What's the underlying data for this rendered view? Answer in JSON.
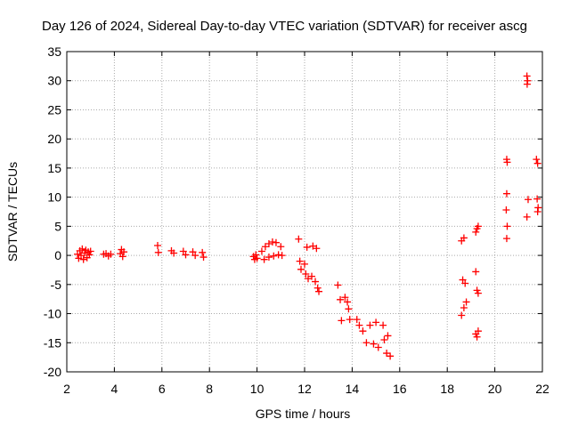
{
  "chart_data": {
    "type": "scatter",
    "title": "Day 126 of 2024, Sidereal Day-to-day VTEC variation (SDTVAR) for receiver ascg",
    "xlabel": "GPS time / hours",
    "ylabel": "SDTVAR / TECUs",
    "xlim": [
      2,
      22
    ],
    "ylim": [
      -20,
      35
    ],
    "xticks": [
      "2",
      "4",
      "6",
      "8",
      "10",
      "12",
      "14",
      "16",
      "18",
      "20",
      "22"
    ],
    "yticks": [
      "-20",
      "-15",
      "-10",
      "-5",
      "0",
      "5",
      "10",
      "15",
      "20",
      "25",
      "30",
      "35"
    ],
    "grid": true,
    "marker": "+",
    "marker_color": "#ff0000",
    "series": [
      {
        "name": "SDTVAR",
        "points": [
          [
            2.45,
            0.2
          ],
          [
            2.5,
            -0.5
          ],
          [
            2.55,
            0.8
          ],
          [
            2.6,
            0.0
          ],
          [
            2.65,
            1.1
          ],
          [
            2.7,
            -0.7
          ],
          [
            2.75,
            0.4
          ],
          [
            2.8,
            0.9
          ],
          [
            2.85,
            -0.4
          ],
          [
            2.9,
            0.6
          ],
          [
            2.95,
            0.1
          ],
          [
            3.0,
            0.7
          ],
          [
            3.55,
            0.2
          ],
          [
            3.65,
            0.3
          ],
          [
            3.75,
            -0.1
          ],
          [
            3.85,
            0.2
          ],
          [
            4.25,
            0.3
          ],
          [
            4.3,
            1.0
          ],
          [
            4.35,
            -0.2
          ],
          [
            4.4,
            0.6
          ],
          [
            5.82,
            1.7
          ],
          [
            5.85,
            0.5
          ],
          [
            6.4,
            0.8
          ],
          [
            6.5,
            0.4
          ],
          [
            6.9,
            0.7
          ],
          [
            7.0,
            0.1
          ],
          [
            7.3,
            0.6
          ],
          [
            7.4,
            0.0
          ],
          [
            7.7,
            0.5
          ],
          [
            7.75,
            -0.3
          ],
          [
            9.85,
            -0.2
          ],
          [
            9.9,
            -0.7
          ],
          [
            9.95,
            0.1
          ],
          [
            10.0,
            -0.5
          ],
          [
            10.2,
            0.7
          ],
          [
            10.35,
            1.5
          ],
          [
            10.5,
            2.0
          ],
          [
            10.65,
            2.3
          ],
          [
            10.8,
            2.2
          ],
          [
            11.0,
            1.5
          ],
          [
            10.3,
            -0.7
          ],
          [
            10.5,
            -0.3
          ],
          [
            10.7,
            -0.1
          ],
          [
            10.9,
            0.1
          ],
          [
            11.05,
            0.0
          ],
          [
            11.75,
            2.8
          ],
          [
            11.8,
            -1.0
          ],
          [
            11.85,
            -2.4
          ],
          [
            12.0,
            -1.5
          ],
          [
            12.05,
            -3.2
          ],
          [
            12.1,
            1.4
          ],
          [
            12.15,
            -4.0
          ],
          [
            12.3,
            -3.6
          ],
          [
            12.45,
            -4.5
          ],
          [
            12.55,
            -5.6
          ],
          [
            12.6,
            -6.2
          ],
          [
            12.35,
            1.6
          ],
          [
            12.5,
            1.2
          ],
          [
            13.4,
            -5.1
          ],
          [
            13.5,
            -7.6
          ],
          [
            13.55,
            -11.2
          ],
          [
            13.7,
            -7.2
          ],
          [
            13.8,
            -8.0
          ],
          [
            13.85,
            -9.2
          ],
          [
            13.9,
            -11.0
          ],
          [
            14.2,
            -11.0
          ],
          [
            14.3,
            -12.0
          ],
          [
            14.45,
            -13.0
          ],
          [
            14.6,
            -15.0
          ],
          [
            14.75,
            -12.0
          ],
          [
            14.9,
            -15.2
          ],
          [
            15.0,
            -11.5
          ],
          [
            15.1,
            -15.8
          ],
          [
            15.3,
            -12.0
          ],
          [
            15.35,
            -14.5
          ],
          [
            15.5,
            -13.8
          ],
          [
            15.45,
            -16.8
          ],
          [
            15.6,
            -17.3
          ],
          [
            18.6,
            2.5
          ],
          [
            18.7,
            3.0
          ],
          [
            18.65,
            -4.2
          ],
          [
            18.75,
            -4.8
          ],
          [
            18.6,
            -10.3
          ],
          [
            18.7,
            -9.0
          ],
          [
            18.8,
            -8.0
          ],
          [
            19.2,
            4.0
          ],
          [
            19.25,
            4.6
          ],
          [
            19.3,
            5.0
          ],
          [
            19.2,
            -2.8
          ],
          [
            19.25,
            -6.0
          ],
          [
            19.3,
            -6.5
          ],
          [
            19.2,
            -13.5
          ],
          [
            19.25,
            -14.0
          ],
          [
            19.3,
            -13.0
          ],
          [
            20.5,
            16.5
          ],
          [
            20.52,
            16.0
          ],
          [
            20.5,
            10.6
          ],
          [
            20.48,
            7.8
          ],
          [
            20.52,
            5.0
          ],
          [
            20.5,
            2.9
          ],
          [
            21.35,
            30.8
          ],
          [
            21.38,
            30.0
          ],
          [
            21.36,
            29.4
          ],
          [
            21.4,
            9.6
          ],
          [
            21.35,
            6.6
          ],
          [
            21.75,
            16.5
          ],
          [
            21.8,
            15.8
          ],
          [
            21.78,
            9.7
          ],
          [
            21.82,
            8.2
          ],
          [
            21.8,
            7.5
          ]
        ]
      }
    ]
  }
}
